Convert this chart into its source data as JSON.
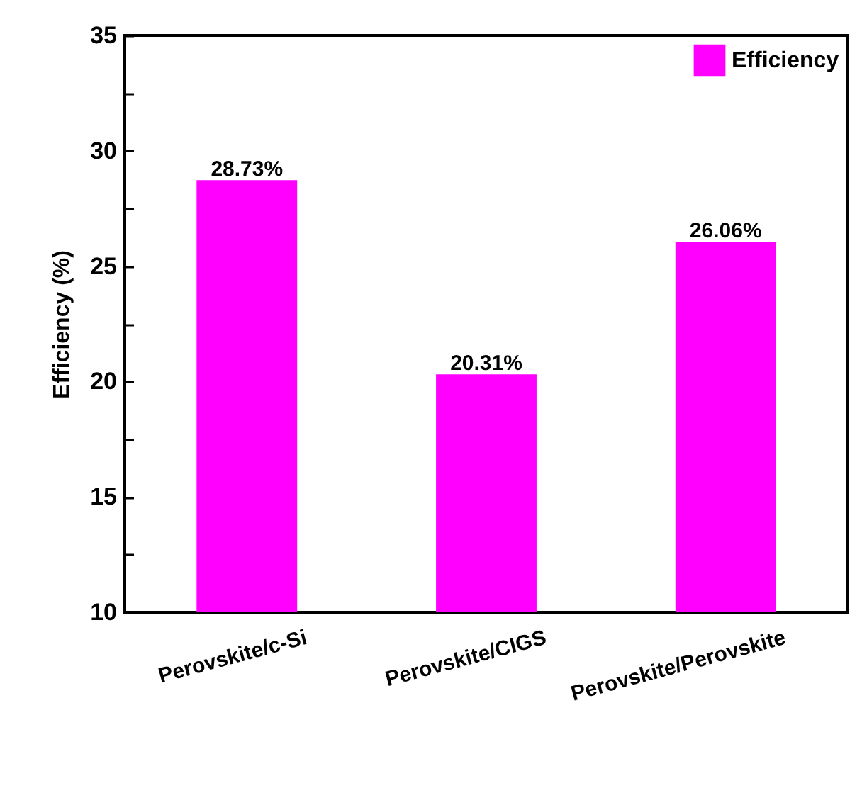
{
  "chart_data": {
    "type": "bar",
    "ylabel": "Efficiency (%)",
    "categories": [
      "Perovskite/c-Si",
      "Perovskite/CIGS",
      "Perovskite/Perovskite"
    ],
    "series": [
      {
        "name": "Efficiency",
        "color": "#ff00ff",
        "values": [
          28.73,
          20.31,
          26.06
        ],
        "value_labels": [
          "28.73%",
          "20.31%",
          "26.06%"
        ]
      }
    ],
    "ylim": [
      10,
      35
    ],
    "yticks": [
      10,
      {
        "value": 12.5,
        "label": null
      },
      15,
      {
        "value": 17.5,
        "label": null
      },
      20,
      {
        "value": 22.5,
        "label": null
      },
      25,
      {
        "value": 27.5,
        "label": null
      },
      30,
      {
        "value": 32.5,
        "label": null
      },
      35
    ],
    "grid": false,
    "legend": "top right"
  }
}
